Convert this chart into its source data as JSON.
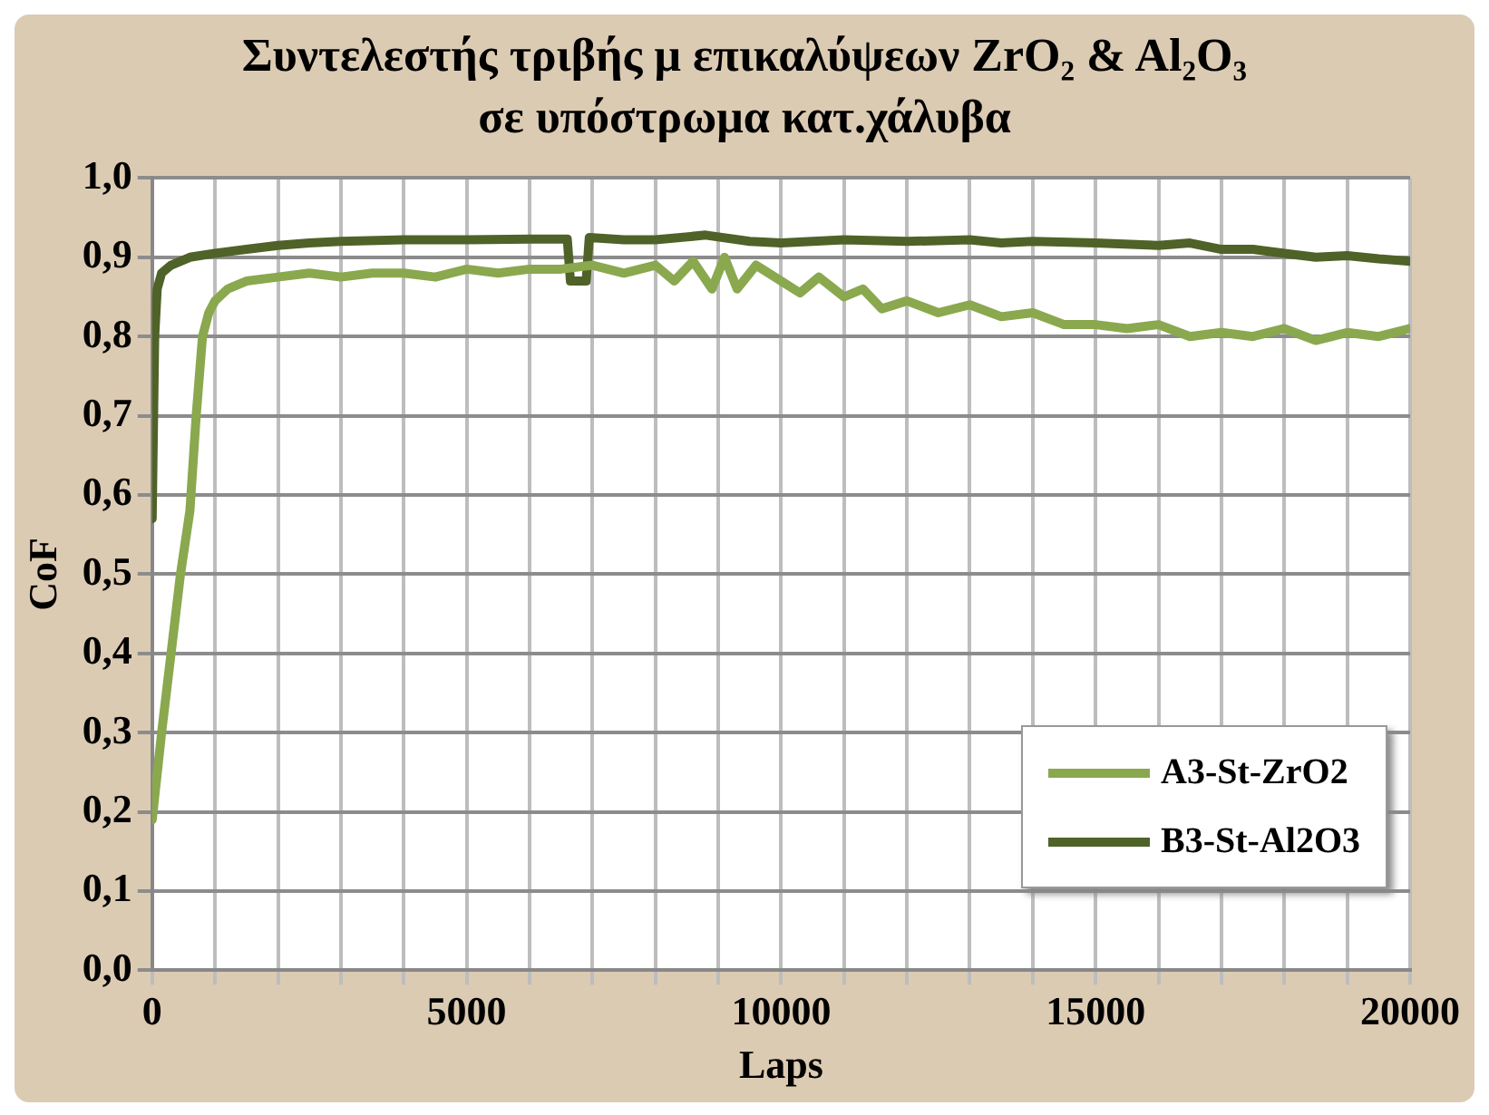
{
  "chart_data": {
    "type": "line",
    "title": "Συντελεστής τριβής μ επικαλύψεων  ZrO₂ & Al₂O₃ σε υπόστρωμα κατ.χάλυβα",
    "xlabel": "Laps",
    "ylabel": "CoF",
    "xlim": [
      0,
      20000
    ],
    "ylim": [
      0,
      1
    ],
    "xticks": [
      0,
      {
        "value": 1000,
        "label": null
      },
      {
        "value": 2000,
        "label": null
      },
      {
        "value": 3000,
        "label": null
      },
      {
        "value": 4000,
        "label": null
      },
      5000,
      {
        "value": 6000,
        "label": null
      },
      {
        "value": 7000,
        "label": null
      },
      {
        "value": 8000,
        "label": null
      },
      {
        "value": 9000,
        "label": null
      },
      10000,
      {
        "value": 11000,
        "label": null
      },
      {
        "value": 12000,
        "label": null
      },
      {
        "value": 13000,
        "label": null
      },
      {
        "value": 14000,
        "label": null
      },
      15000,
      {
        "value": 16000,
        "label": null
      },
      {
        "value": 17000,
        "label": null
      },
      {
        "value": 18000,
        "label": null
      },
      {
        "value": 19000,
        "label": null
      },
      20000
    ],
    "yticks": [
      {
        "value": 0,
        "label": "0,0"
      },
      {
        "value": 0.1,
        "label": "0,1"
      },
      {
        "value": 0.2,
        "label": "0,2"
      },
      {
        "value": 0.3,
        "label": "0,3"
      },
      {
        "value": 0.4,
        "label": "0,4"
      },
      {
        "value": 0.5,
        "label": "0,5"
      },
      {
        "value": 0.6,
        "label": "0,6"
      },
      {
        "value": 0.7,
        "label": "0,7"
      },
      {
        "value": 0.8,
        "label": "0,8"
      },
      {
        "value": 0.9,
        "label": "0,9"
      },
      {
        "value": 1,
        "label": "1,0"
      }
    ],
    "grid": true,
    "legend": "bottom right",
    "marker": "none",
    "line_style": "solid",
    "series": [
      {
        "name": "A3-St-ZrO2",
        "color": "#8aa84e",
        "x": [
          0,
          150,
          300,
          450,
          600,
          700,
          800,
          900,
          1000,
          1200,
          1500,
          2000,
          2500,
          3000,
          3500,
          4000,
          4500,
          5000,
          5500,
          6000,
          6500,
          7000,
          7500,
          8000,
          8300,
          8600,
          8900,
          9100,
          9300,
          9600,
          10000,
          10300,
          10600,
          11000,
          11300,
          11600,
          12000,
          12500,
          13000,
          13500,
          14000,
          14500,
          15000,
          15500,
          16000,
          16500,
          17000,
          17500,
          18000,
          18500,
          19000,
          19500,
          20000
        ],
        "values": [
          0.19,
          0.3,
          0.4,
          0.5,
          0.58,
          0.7,
          0.8,
          0.83,
          0.845,
          0.86,
          0.87,
          0.875,
          0.88,
          0.875,
          0.88,
          0.88,
          0.875,
          0.885,
          0.88,
          0.885,
          0.885,
          0.89,
          0.88,
          0.89,
          0.87,
          0.895,
          0.86,
          0.9,
          0.86,
          0.89,
          0.87,
          0.855,
          0.875,
          0.85,
          0.86,
          0.835,
          0.845,
          0.83,
          0.84,
          0.825,
          0.83,
          0.815,
          0.815,
          0.81,
          0.815,
          0.8,
          0.805,
          0.8,
          0.81,
          0.795,
          0.805,
          0.8,
          0.81
        ]
      },
      {
        "name": "B3-St-Al2O3",
        "color": "#4f6228",
        "x": [
          0,
          40,
          80,
          150,
          300,
          600,
          1000,
          1500,
          2000,
          2500,
          3000,
          4000,
          5000,
          6000,
          6600,
          6650,
          6900,
          6950,
          7500,
          8000,
          8800,
          9500,
          10000,
          11000,
          12000,
          13000,
          13500,
          14000,
          15000,
          16000,
          16500,
          17000,
          17500,
          18000,
          18500,
          19000,
          19500,
          20000
        ],
        "values": [
          0.57,
          0.8,
          0.86,
          0.88,
          0.89,
          0.9,
          0.905,
          0.91,
          0.915,
          0.918,
          0.92,
          0.922,
          0.922,
          0.923,
          0.923,
          0.87,
          0.87,
          0.925,
          0.922,
          0.922,
          0.928,
          0.92,
          0.918,
          0.922,
          0.92,
          0.922,
          0.918,
          0.92,
          0.918,
          0.915,
          0.918,
          0.91,
          0.91,
          0.905,
          0.9,
          0.902,
          0.898,
          0.895
        ]
      }
    ]
  }
}
